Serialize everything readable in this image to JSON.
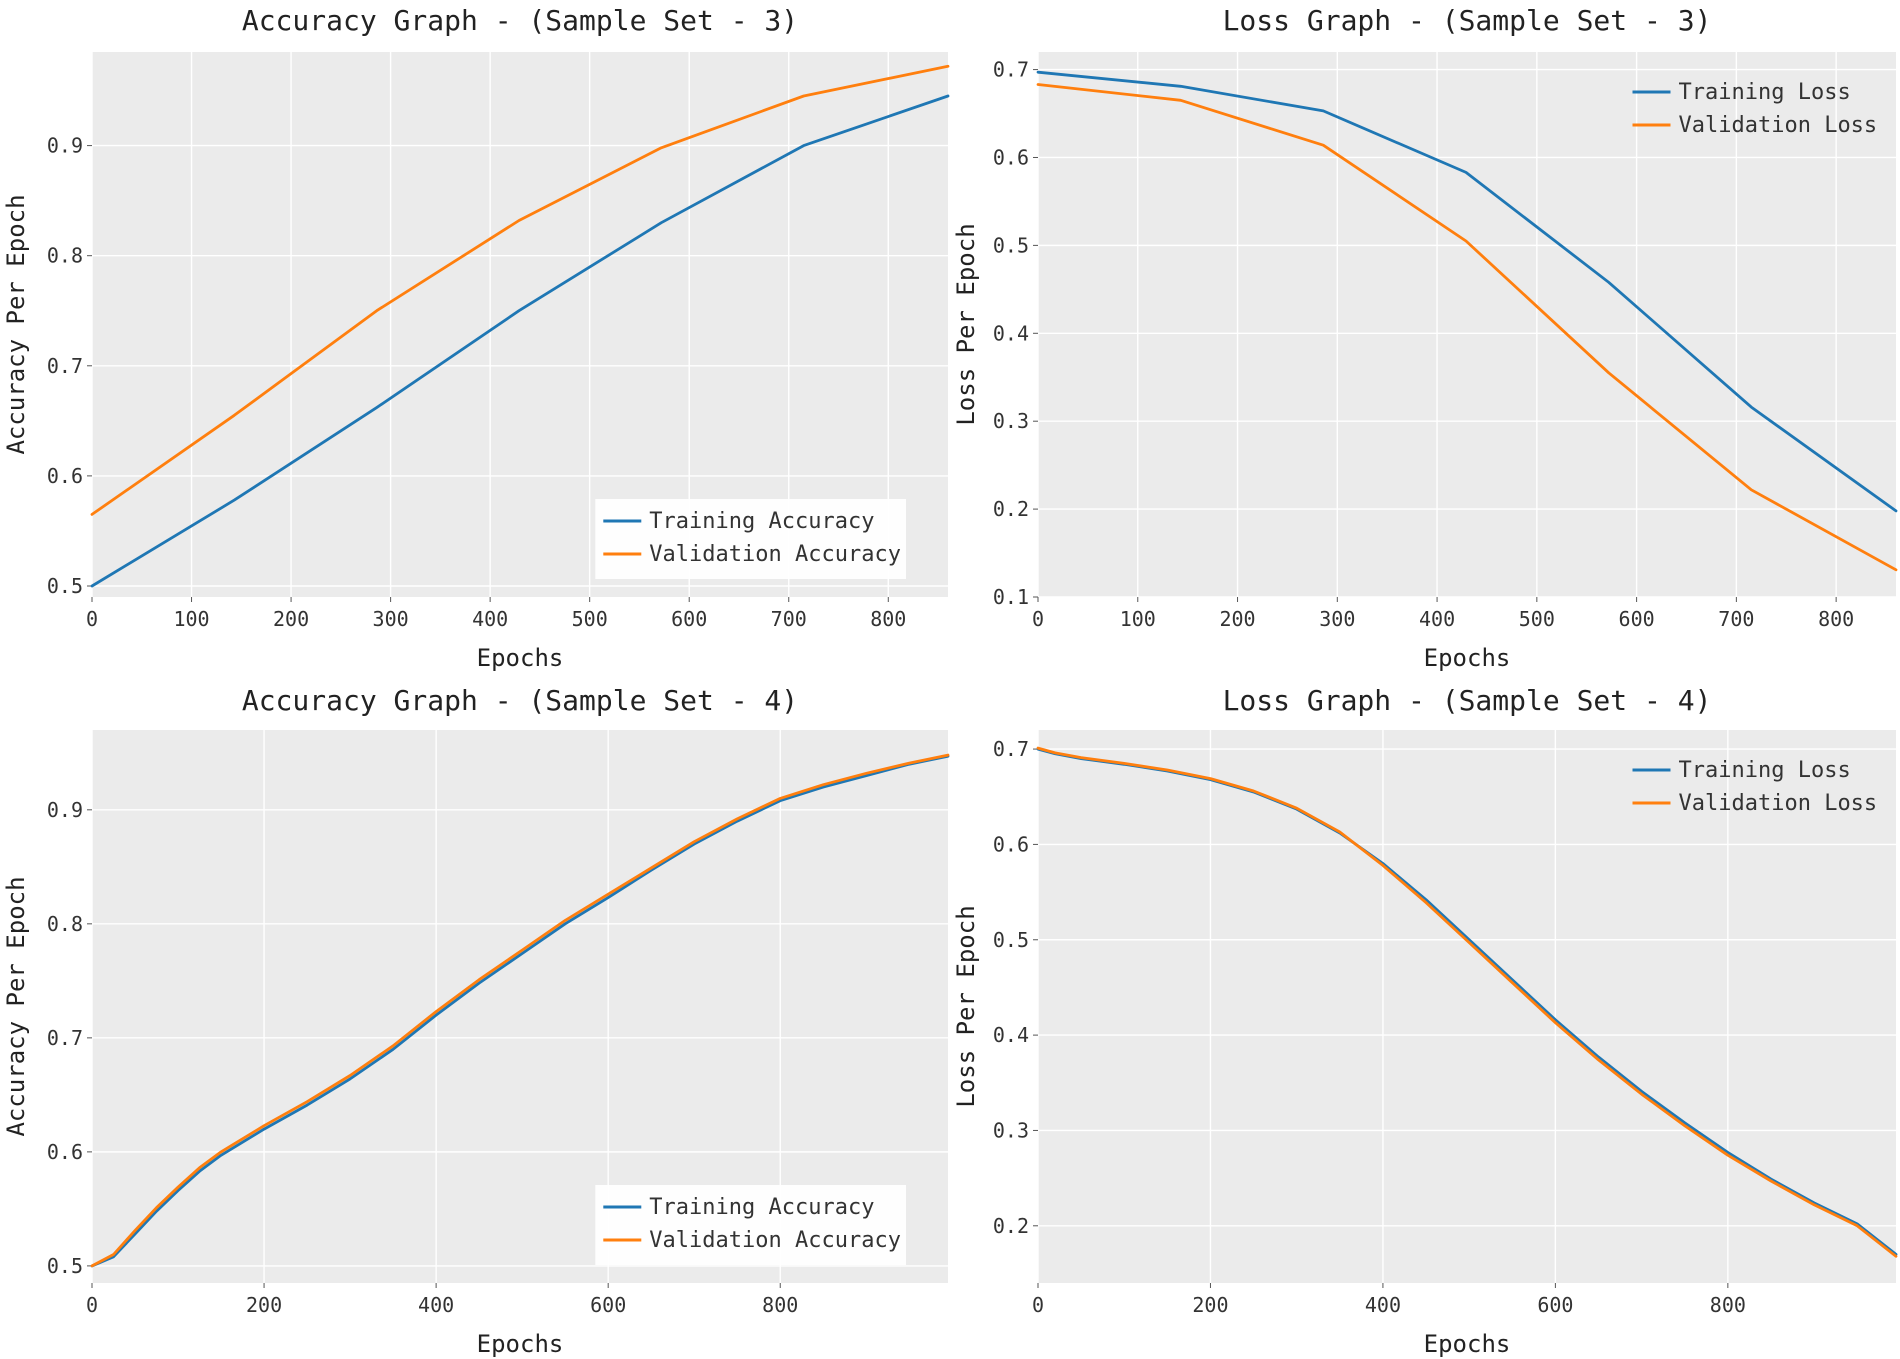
{
  "colors": {
    "training": "#1f77b4",
    "validation": "#ff7f0e",
    "plot_background": "#ebebeb",
    "grid": "#ffffff"
  },
  "chart_data": [
    {
      "type": "line",
      "title": "Accuracy Graph - (Sample Set - 3)",
      "xlabel": "Epochs",
      "ylabel": "Accuracy Per Epoch",
      "xlim": [
        0,
        860
      ],
      "ylim": [
        0.49,
        0.985
      ],
      "xticks": [
        0,
        100,
        200,
        300,
        400,
        500,
        600,
        700,
        800
      ],
      "yticks": [
        0.5,
        0.6,
        0.7,
        0.8,
        0.9
      ],
      "tick_labels_y": [
        "0.5",
        "0.6",
        "0.7",
        "0.8",
        "0.9"
      ],
      "grid": true,
      "legend_position": "lower-right",
      "series": [
        {
          "name": "Training Accuracy",
          "color": "#1f77b4",
          "x": [
            0,
            143,
            286,
            429,
            572,
            715,
            860
          ],
          "y": [
            0.5,
            0.578,
            0.662,
            0.75,
            0.83,
            0.9,
            0.945
          ]
        },
        {
          "name": "Validation Accuracy",
          "color": "#ff7f0e",
          "x": [
            0,
            143,
            286,
            429,
            572,
            715,
            860
          ],
          "y": [
            0.565,
            0.655,
            0.75,
            0.832,
            0.898,
            0.945,
            0.972
          ]
        }
      ]
    },
    {
      "type": "line",
      "title": "Loss Graph - (Sample Set - 3)",
      "xlabel": "Epochs",
      "ylabel": "Loss Per Epoch",
      "xlim": [
        0,
        860
      ],
      "ylim": [
        0.1,
        0.72
      ],
      "xticks": [
        0,
        100,
        200,
        300,
        400,
        500,
        600,
        700,
        800
      ],
      "yticks": [
        0.1,
        0.2,
        0.3,
        0.4,
        0.5,
        0.6,
        0.7
      ],
      "tick_labels_y": [
        "0.1",
        "0.2",
        "0.3",
        "0.4",
        "0.5",
        "0.6",
        "0.7"
      ],
      "grid": true,
      "legend_position": "top-right",
      "series": [
        {
          "name": "Training Loss",
          "color": "#1f77b4",
          "x": [
            0,
            143,
            286,
            429,
            572,
            715,
            860
          ],
          "y": [
            0.697,
            0.681,
            0.653,
            0.583,
            0.458,
            0.316,
            0.198
          ]
        },
        {
          "name": "Validation Loss",
          "color": "#ff7f0e",
          "x": [
            0,
            143,
            286,
            429,
            572,
            715,
            860
          ],
          "y": [
            0.683,
            0.665,
            0.614,
            0.505,
            0.355,
            0.222,
            0.131
          ]
        }
      ]
    },
    {
      "type": "line",
      "title": "Accuracy Graph - (Sample Set - 4)",
      "xlabel": "Epochs",
      "ylabel": "Accuracy Per Epoch",
      "xlim": [
        0,
        995
      ],
      "ylim": [
        0.485,
        0.97
      ],
      "xticks": [
        0,
        200,
        400,
        600,
        800
      ],
      "yticks": [
        0.5,
        0.6,
        0.7,
        0.8,
        0.9
      ],
      "tick_labels_y": [
        "0.5",
        "0.6",
        "0.7",
        "0.8",
        "0.9"
      ],
      "grid": true,
      "legend_position": "lower-right",
      "series": [
        {
          "name": "Training Accuracy",
          "color": "#1f77b4",
          "x": [
            0,
            25,
            50,
            75,
            100,
            125,
            150,
            200,
            250,
            300,
            350,
            400,
            450,
            500,
            550,
            600,
            650,
            700,
            750,
            800,
            850,
            900,
            950,
            995
          ],
          "y": [
            0.5,
            0.508,
            0.528,
            0.548,
            0.566,
            0.583,
            0.597,
            0.62,
            0.641,
            0.664,
            0.69,
            0.72,
            0.748,
            0.774,
            0.8,
            0.823,
            0.847,
            0.87,
            0.89,
            0.908,
            0.92,
            0.93,
            0.94,
            0.947
          ]
        },
        {
          "name": "Validation Accuracy",
          "color": "#ff7f0e",
          "x": [
            0,
            25,
            50,
            75,
            100,
            125,
            150,
            200,
            250,
            300,
            350,
            400,
            450,
            500,
            550,
            600,
            650,
            700,
            750,
            800,
            850,
            900,
            950,
            995
          ],
          "y": [
            0.5,
            0.51,
            0.531,
            0.551,
            0.569,
            0.586,
            0.6,
            0.623,
            0.644,
            0.667,
            0.693,
            0.723,
            0.751,
            0.777,
            0.803,
            0.826,
            0.849,
            0.872,
            0.892,
            0.91,
            0.922,
            0.932,
            0.941,
            0.948
          ]
        }
      ]
    },
    {
      "type": "line",
      "title": "Loss Graph - (Sample Set - 4)",
      "xlabel": "Epochs",
      "ylabel": "Loss Per Epoch",
      "xlim": [
        0,
        995
      ],
      "ylim": [
        0.14,
        0.72
      ],
      "xticks": [
        0,
        200,
        400,
        600,
        800
      ],
      "yticks": [
        0.2,
        0.3,
        0.4,
        0.5,
        0.6,
        0.7
      ],
      "tick_labels_y": [
        "0.2",
        "0.3",
        "0.4",
        "0.5",
        "0.6",
        "0.7"
      ],
      "grid": true,
      "legend_position": "top-right",
      "series": [
        {
          "name": "Training Loss",
          "color": "#1f77b4",
          "x": [
            0,
            20,
            50,
            100,
            150,
            200,
            250,
            300,
            350,
            400,
            450,
            500,
            550,
            600,
            650,
            700,
            750,
            800,
            850,
            900,
            950,
            995
          ],
          "y": [
            0.7,
            0.695,
            0.69,
            0.684,
            0.677,
            0.668,
            0.655,
            0.637,
            0.612,
            0.58,
            0.542,
            0.5,
            0.458,
            0.416,
            0.377,
            0.341,
            0.308,
            0.277,
            0.249,
            0.224,
            0.202,
            0.17
          ]
        },
        {
          "name": "Validation Loss",
          "color": "#ff7f0e",
          "x": [
            0,
            20,
            50,
            100,
            150,
            200,
            250,
            300,
            350,
            400,
            450,
            500,
            550,
            600,
            650,
            700,
            750,
            800,
            850,
            900,
            950,
            995
          ],
          "y": [
            0.701,
            0.696,
            0.691,
            0.685,
            0.678,
            0.669,
            0.656,
            0.638,
            0.613,
            0.578,
            0.539,
            0.497,
            0.455,
            0.413,
            0.374,
            0.338,
            0.305,
            0.274,
            0.247,
            0.222,
            0.2,
            0.168
          ]
        }
      ]
    }
  ]
}
